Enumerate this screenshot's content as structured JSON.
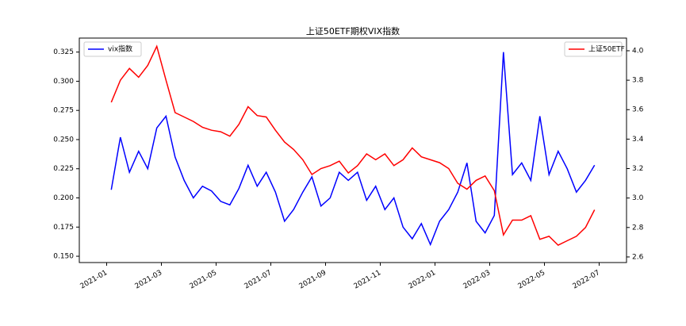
{
  "chart_data": {
    "type": "line",
    "title": "上证50ETF期权VIX指数",
    "x": [
      "2021-01",
      "2021-01",
      "2021-01",
      "2021-02",
      "2021-02",
      "2021-02",
      "2021-03",
      "2021-03",
      "2021-03",
      "2021-04",
      "2021-04",
      "2021-04",
      "2021-05",
      "2021-05",
      "2021-05",
      "2021-06",
      "2021-06",
      "2021-06",
      "2021-07",
      "2021-07",
      "2021-07",
      "2021-08",
      "2021-08",
      "2021-08",
      "2021-09",
      "2021-09",
      "2021-09",
      "2021-10",
      "2021-10",
      "2021-10",
      "2021-11",
      "2021-11",
      "2021-11",
      "2021-12",
      "2021-12",
      "2021-12",
      "2022-01",
      "2022-01",
      "2022-01",
      "2022-02",
      "2022-02",
      "2022-02",
      "2022-03",
      "2022-03",
      "2022-03",
      "2022-04",
      "2022-04",
      "2022-04",
      "2022-05",
      "2022-05",
      "2022-05",
      "2022-06",
      "2022-06",
      "2022-06"
    ],
    "xlim": [
      "2020-12",
      "2022-08"
    ],
    "xticks": [
      "2021-01",
      "2021-03",
      "2021-05",
      "2021-07",
      "2021-09",
      "2021-11",
      "2022-01",
      "2022-03",
      "2022-05",
      "2022-07"
    ],
    "ylim": [
      0.1446,
      0.337
    ],
    "yticks": [
      {
        "value": 0.15,
        "label": "0.150"
      },
      {
        "value": 0.175,
        "label": "0.175"
      },
      {
        "value": 0.2,
        "label": "0.200"
      },
      {
        "value": 0.225,
        "label": "0.225"
      },
      {
        "value": 0.25,
        "label": "0.250"
      },
      {
        "value": 0.275,
        "label": "0.275"
      },
      {
        "value": 0.3,
        "label": "0.300"
      },
      {
        "value": 0.325,
        "label": "0.325"
      }
    ],
    "y2lim": [
      2.562,
      4.086
    ],
    "y2ticks": [
      2.6,
      2.8,
      {
        "value": 3.0,
        "label": "3.0"
      },
      3.2,
      3.4,
      3.6,
      3.8,
      {
        "value": 4.0,
        "label": "4.0"
      }
    ],
    "legend": [
      "upper left",
      "upper right"
    ],
    "series": [
      {
        "name": "vix指数",
        "color": "#0000ff",
        "values": [
          0.207,
          0.252,
          0.222,
          0.24,
          0.225,
          0.26,
          0.27,
          0.235,
          0.215,
          0.2,
          0.21,
          0.206,
          0.197,
          0.194,
          0.208,
          0.228,
          0.21,
          0.222,
          0.205,
          0.18,
          0.19,
          0.205,
          0.218,
          0.193,
          0.2,
          0.222,
          0.215,
          0.222,
          0.198,
          0.21,
          0.19,
          0.2,
          0.175,
          0.165,
          0.178,
          0.16,
          0.18,
          0.19,
          0.205,
          0.23,
          0.18,
          0.17,
          0.185,
          0.325,
          0.22,
          0.23,
          0.215,
          0.27,
          0.22,
          0.24,
          0.225,
          0.205,
          0.215,
          0.228
        ]
      },
      {
        "name": "上证50ETF",
        "color": "#ff0000",
        "axis": "y2",
        "values": [
          3.65,
          3.8,
          3.88,
          3.82,
          3.9,
          4.03,
          3.8,
          3.58,
          3.55,
          3.52,
          3.48,
          3.46,
          3.45,
          3.42,
          3.5,
          3.62,
          3.56,
          3.55,
          3.46,
          3.38,
          3.33,
          3.26,
          3.16,
          3.2,
          3.22,
          3.25,
          3.17,
          3.22,
          3.3,
          3.26,
          3.3,
          3.22,
          3.26,
          3.34,
          3.28,
          3.26,
          3.24,
          3.2,
          3.1,
          3.06,
          3.12,
          3.15,
          3.05,
          2.75,
          2.85,
          2.85,
          2.88,
          2.72,
          2.74,
          2.68,
          2.71,
          2.74,
          2.8,
          2.92
        ]
      }
    ]
  }
}
